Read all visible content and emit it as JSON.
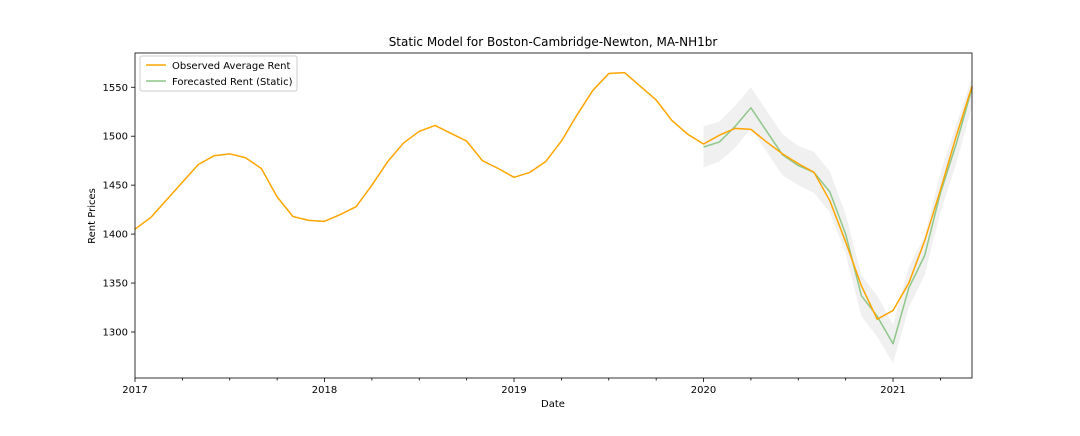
{
  "chart_data": {
    "type": "line",
    "title": "Static Model for Boston-Cambridge-Newton, MA-NH1br",
    "xlabel": "Date",
    "ylabel": "Rent Prices",
    "x_range": [
      "2017-01",
      "2021-06"
    ],
    "ylim": [
      1253,
      1585
    ],
    "x_ticks": [
      {
        "date": "2017-01",
        "label": "2017"
      },
      {
        "date": "2018-01",
        "label": "2018"
      },
      {
        "date": "2019-01",
        "label": "2019"
      },
      {
        "date": "2020-01",
        "label": "2020"
      },
      {
        "date": "2021-01",
        "label": "2021"
      }
    ],
    "y_ticks": [
      1300,
      1350,
      1400,
      1450,
      1500,
      1550
    ],
    "grid": false,
    "legend_position": "top-left",
    "series": [
      {
        "name": "Observed Average Rent",
        "color": "#FFA500",
        "x": [
          "2017-01",
          "2017-02",
          "2017-03",
          "2017-04",
          "2017-05",
          "2017-06",
          "2017-07",
          "2017-08",
          "2017-09",
          "2017-10",
          "2017-11",
          "2017-12",
          "2018-01",
          "2018-02",
          "2018-03",
          "2018-04",
          "2018-05",
          "2018-06",
          "2018-07",
          "2018-08",
          "2018-09",
          "2018-10",
          "2018-11",
          "2018-12",
          "2019-01",
          "2019-02",
          "2019-03",
          "2019-04",
          "2019-05",
          "2019-06",
          "2019-07",
          "2019-08",
          "2019-09",
          "2019-10",
          "2019-11",
          "2019-12",
          "2020-01",
          "2020-02",
          "2020-03",
          "2020-04",
          "2020-05",
          "2020-06",
          "2020-07",
          "2020-08",
          "2020-09",
          "2020-10",
          "2020-11",
          "2020-12",
          "2021-01",
          "2021-02",
          "2021-03",
          "2021-04",
          "2021-05",
          "2021-06"
        ],
        "values": [
          1405,
          1417,
          1435,
          1453,
          1471,
          1480,
          1482,
          1478,
          1467,
          1438,
          1418,
          1414,
          1413,
          1420,
          1428,
          1450,
          1474,
          1493,
          1505,
          1511,
          1503,
          1495,
          1475,
          1467,
          1458,
          1463,
          1474,
          1495,
          1522,
          1547,
          1564,
          1565,
          1551,
          1537,
          1516,
          1502,
          1492,
          1501,
          1508,
          1507,
          1494,
          1482,
          1472,
          1463,
          1434,
          1392,
          1347,
          1313,
          1322,
          1350,
          1393,
          1445,
          1500,
          1551
        ]
      },
      {
        "name": "Forecasted Rent (Static)",
        "color": "#8FC78A",
        "x": [
          "2020-01",
          "2020-02",
          "2020-03",
          "2020-04",
          "2020-05",
          "2020-06",
          "2020-07",
          "2020-08",
          "2020-09",
          "2020-10",
          "2020-11",
          "2020-12",
          "2021-01",
          "2021-02",
          "2021-03",
          "2021-04",
          "2021-05",
          "2021-06"
        ],
        "values": [
          1489,
          1494,
          1510,
          1529,
          1505,
          1481,
          1470,
          1463,
          1443,
          1400,
          1337,
          1316,
          1288,
          1345,
          1378,
          1442,
          1492,
          1549
        ],
        "ci_lower": [
          1468,
          1474,
          1488,
          1508,
          1484,
          1460,
          1450,
          1442,
          1422,
          1380,
          1316,
          1295,
          1268,
          1325,
          1358,
          1422,
          1472,
          1530
        ],
        "ci_upper": [
          1510,
          1515,
          1531,
          1550,
          1526,
          1502,
          1490,
          1484,
          1464,
          1420,
          1358,
          1337,
          1308,
          1366,
          1398,
          1462,
          1512,
          1560
        ]
      }
    ]
  }
}
